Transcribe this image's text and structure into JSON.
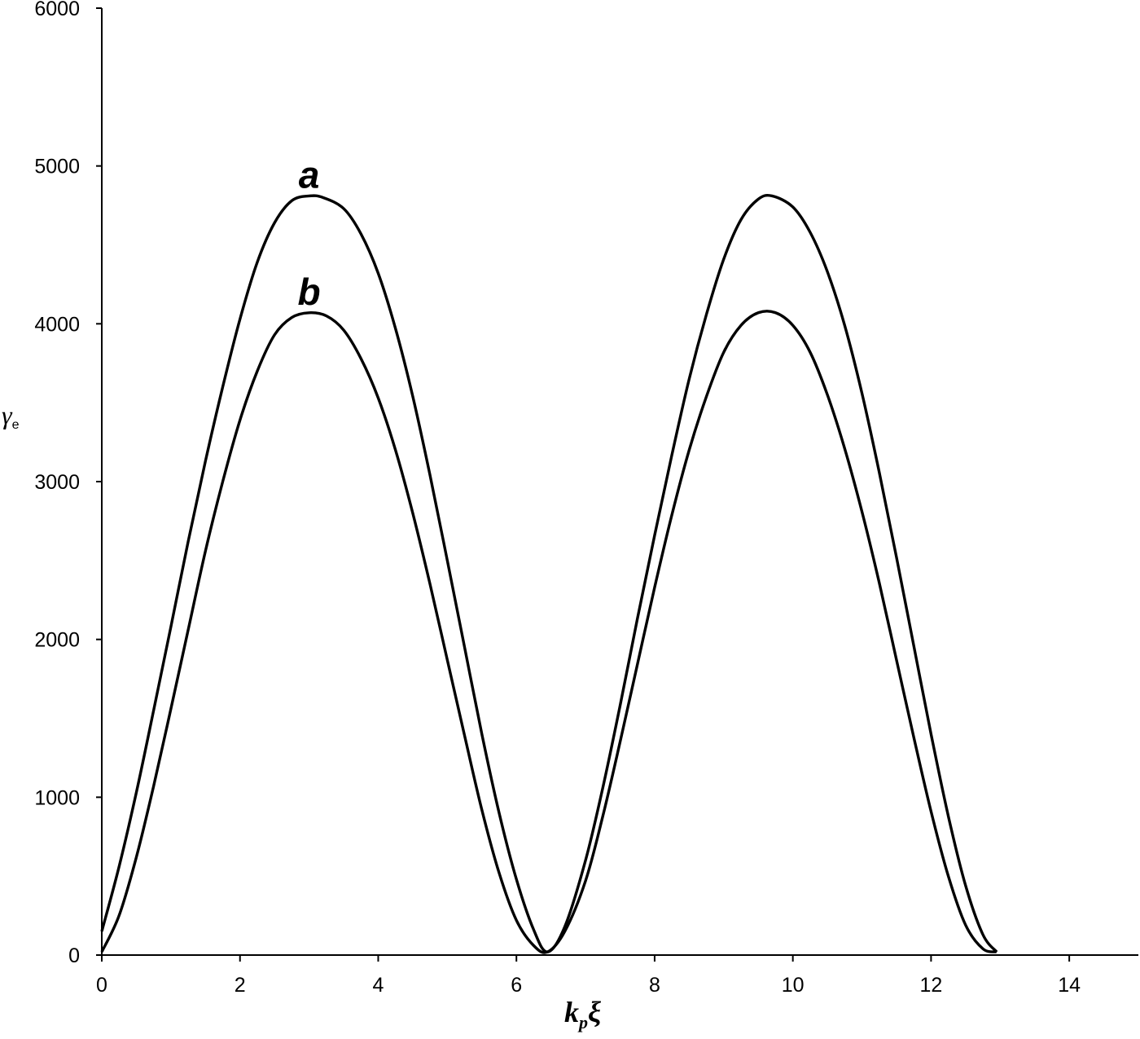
{
  "chart_data": {
    "type": "line",
    "title": "",
    "xlabel": {
      "main": "k",
      "sub": "p",
      "tail": "ξ"
    },
    "ylabel": {
      "main": "γ",
      "sub": "e"
    },
    "xlim": [
      0,
      15
    ],
    "ylim": [
      0,
      6000
    ],
    "xticks": [
      0,
      2,
      4,
      6,
      8,
      10,
      12,
      14
    ],
    "yticks": [
      0,
      1000,
      2000,
      3000,
      4000,
      5000,
      6000
    ],
    "grid": false,
    "series": [
      {
        "name": "a",
        "x": [
          0,
          0.25,
          0.5,
          0.75,
          1.0,
          1.25,
          1.5,
          1.75,
          2.0,
          2.25,
          2.5,
          2.75,
          3.0,
          3.2,
          3.5,
          3.75,
          4.0,
          4.25,
          4.5,
          4.75,
          5.0,
          5.25,
          5.5,
          5.75,
          6.0,
          6.25,
          6.45,
          6.7,
          7.0,
          7.25,
          7.5,
          7.75,
          8.0,
          8.25,
          8.5,
          8.75,
          9.0,
          9.25,
          9.5,
          9.7,
          10.0,
          10.25,
          10.5,
          10.75,
          11.0,
          11.25,
          11.5,
          11.75,
          12.0,
          12.25,
          12.5,
          12.75,
          12.95
        ],
        "y": [
          150,
          560,
          1030,
          1550,
          2080,
          2620,
          3130,
          3600,
          4030,
          4390,
          4640,
          4780,
          4810,
          4800,
          4730,
          4570,
          4320,
          3970,
          3540,
          3040,
          2500,
          1950,
          1400,
          900,
          480,
          160,
          20,
          180,
          600,
          1060,
          1580,
          2130,
          2660,
          3170,
          3650,
          4060,
          4410,
          4660,
          4790,
          4810,
          4740,
          4580,
          4330,
          3990,
          3560,
          3060,
          2520,
          1960,
          1400,
          880,
          440,
          130,
          20
        ]
      },
      {
        "name": "b",
        "x": [
          0,
          0.25,
          0.5,
          0.75,
          1.0,
          1.25,
          1.5,
          1.75,
          2.0,
          2.25,
          2.5,
          2.75,
          3.0,
          3.25,
          3.5,
          3.75,
          4.0,
          4.25,
          4.5,
          4.75,
          5.0,
          5.25,
          5.5,
          5.75,
          6.0,
          6.25,
          6.45,
          6.7,
          7.0,
          7.25,
          7.5,
          7.75,
          8.0,
          8.25,
          8.5,
          8.75,
          9.0,
          9.25,
          9.5,
          9.75,
          10.0,
          10.25,
          10.5,
          10.75,
          11.0,
          11.25,
          11.5,
          11.75,
          12.0,
          12.25,
          12.5,
          12.75,
          12.95
        ],
        "y": [
          20,
          250,
          620,
          1070,
          1560,
          2060,
          2560,
          3000,
          3390,
          3700,
          3930,
          4040,
          4070,
          4050,
          3960,
          3780,
          3530,
          3200,
          2800,
          2350,
          1870,
          1390,
          920,
          520,
          220,
          60,
          20,
          150,
          470,
          880,
          1350,
          1840,
          2330,
          2790,
          3200,
          3540,
          3820,
          3990,
          4070,
          4070,
          3990,
          3820,
          3550,
          3210,
          2810,
          2360,
          1870,
          1380,
          910,
          500,
          190,
          40,
          20
        ]
      }
    ]
  }
}
